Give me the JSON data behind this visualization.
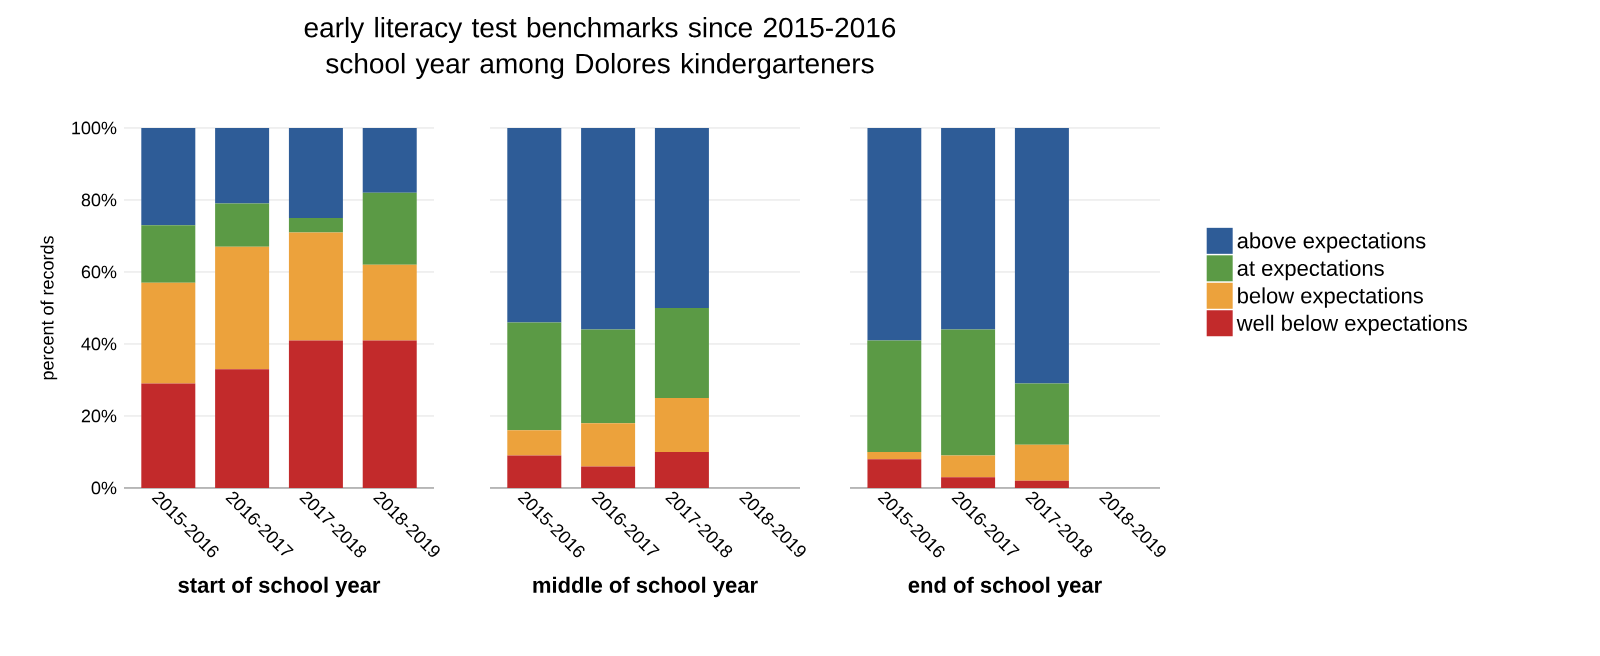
{
  "chart_data": [
    {
      "type": "bar",
      "stacked": true,
      "title": "early literacy test benchmarks since 2015-2016 school year among Dolores kindergarteners",
      "xlabel": "start of school year",
      "ylabel": "percent of records",
      "categories": [
        "2015-2016",
        "2016-2017",
        "2017-2018",
        "2018-2019"
      ],
      "ylim": [
        0,
        100
      ],
      "yticks": [
        {
          "value": 0,
          "label": "0%"
        },
        {
          "value": 20,
          "label": "20%"
        },
        {
          "value": 40,
          "label": "40%"
        },
        {
          "value": 60,
          "label": "60%"
        },
        {
          "value": 80,
          "label": "80%"
        },
        {
          "value": 100,
          "label": "100%"
        }
      ],
      "grid": "y",
      "series": [
        {
          "color": "#c22a2b",
          "values": [
            29,
            33,
            41,
            41
          ]
        },
        {
          "color": "#eca23c",
          "values": [
            28,
            34,
            30,
            21
          ]
        },
        {
          "color": "#5b9a45",
          "values": [
            16,
            12,
            4,
            20
          ]
        },
        {
          "color": "#2e5c97",
          "values": [
            27,
            21,
            25,
            18
          ]
        }
      ]
    },
    {
      "type": "bar",
      "stacked": true,
      "xlabel": "middle of school year",
      "categories": [
        "2015-2016",
        "2016-2017",
        "2017-2018",
        "2018-2019"
      ],
      "ylim": [
        0,
        100
      ],
      "yticks": [
        0,
        20,
        40,
        60,
        80,
        100
      ],
      "tick_labels": "x",
      "grid": "y",
      "series": [
        {
          "color": "#c22a2b",
          "values": [
            9,
            6,
            10,
            null
          ]
        },
        {
          "color": "#eca23c",
          "values": [
            7,
            12,
            15,
            null
          ]
        },
        {
          "color": "#5b9a45",
          "values": [
            30,
            26,
            25,
            null
          ]
        },
        {
          "color": "#2e5c97",
          "values": [
            54,
            56,
            50,
            null
          ]
        }
      ]
    },
    {
      "type": "bar",
      "stacked": true,
      "xlabel": "end of school year",
      "categories": [
        "2015-2016",
        "2016-2017",
        "2017-2018",
        "2018-2019"
      ],
      "ylim": [
        0,
        100
      ],
      "yticks": [
        0,
        20,
        40,
        60,
        80,
        100
      ],
      "tick_labels": "x",
      "grid": "y",
      "legend": "right",
      "series": [
        {
          "name": "well below expectations",
          "color": "#c22a2b",
          "values": [
            8,
            3,
            2,
            null
          ]
        },
        {
          "name": "below expectations",
          "color": "#eca23c",
          "values": [
            2,
            6,
            10,
            null
          ]
        },
        {
          "name": "at expectations",
          "color": "#5b9a45",
          "values": [
            31,
            35,
            17,
            null
          ]
        },
        {
          "name": "above expectations",
          "color": "#2e5c97",
          "values": [
            59,
            56,
            71,
            null
          ]
        }
      ]
    }
  ]
}
